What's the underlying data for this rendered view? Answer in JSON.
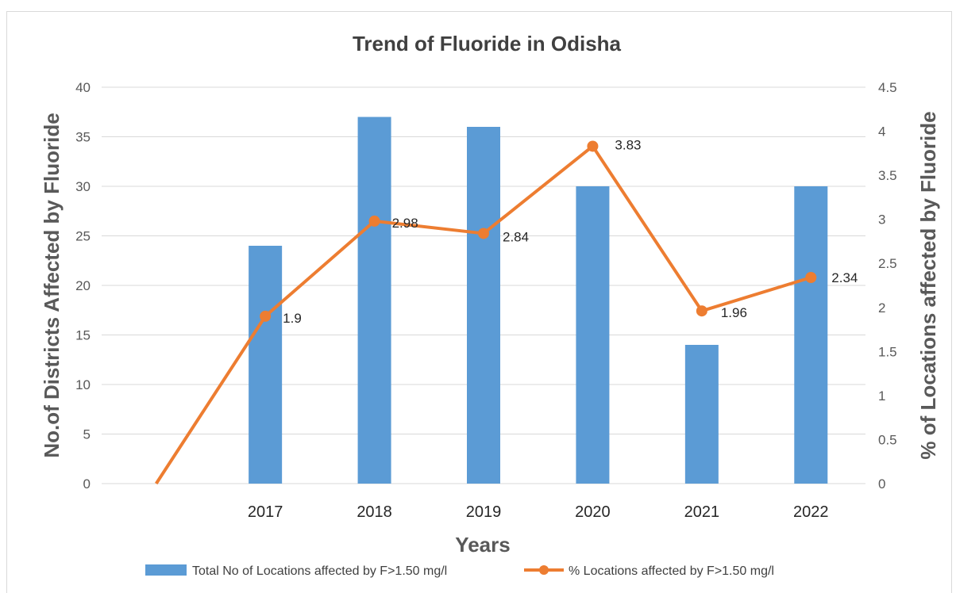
{
  "chart_data": {
    "type": "bar",
    "title": "Trend of Fluoride in Odisha",
    "xlabel": "Years",
    "ylabel": "No.of Districts Affected by Fluoride",
    "y2label": "% of Locations affected by  Fluoride",
    "categories": [
      "",
      "2017",
      "2018",
      "2019",
      "2020",
      "2021",
      "2022"
    ],
    "series": [
      {
        "name": "Total No of Locations affected by F>1.50 mg/l",
        "type": "bar",
        "axis": "left",
        "color": "#5b9bd5",
        "values": [
          0,
          24,
          37,
          36,
          30,
          14,
          30
        ]
      },
      {
        "name": "% Locations affected by F>1.50 mg/l",
        "type": "line",
        "axis": "right",
        "color": "#ed7d31",
        "marker": "circle",
        "values": [
          0,
          1.9,
          2.98,
          2.84,
          3.83,
          1.96,
          2.34
        ],
        "data_labels": [
          "",
          "1.9",
          "2.98",
          "2.84",
          "3.83",
          "1.96",
          "2.34"
        ]
      }
    ],
    "ylim": [
      0,
      40
    ],
    "y_ticks": [
      "0",
      "5",
      "10",
      "15",
      "20",
      "25",
      "30",
      "35",
      "40"
    ],
    "y2lim": [
      0,
      4.5
    ],
    "y2_ticks": [
      "0",
      "0.5",
      "1",
      "1.5",
      "2",
      "2.5",
      "3",
      "3.5",
      "4",
      "4.5"
    ],
    "grid": true,
    "legend": "bottom"
  }
}
